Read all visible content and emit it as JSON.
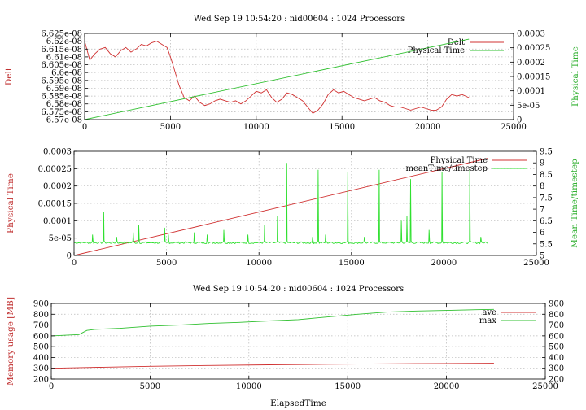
{
  "chart_data": [
    {
      "type": "line",
      "title": "Wed Sep 19 10:54:20 : nid00604 : 1024 Processors",
      "xlabel": "",
      "ylabel": "Delt",
      "y2label": "Physical Time",
      "xlim": [
        0,
        25000
      ],
      "ylim": [
        6.57e-08,
        6.625e-08
      ],
      "y2lim": [
        0,
        0.0003
      ],
      "xticks": [
        "0",
        "5000",
        "10000",
        "15000",
        "20000",
        "25000"
      ],
      "yticks": [
        "6.57e-08",
        "6.575e-08",
        "6.58e-08",
        "6.585e-08",
        "6.59e-08",
        "6.595e-08",
        "6.6e-08",
        "6.605e-08",
        "6.61e-08",
        "6.615e-08",
        "6.62e-08",
        "6.625e-08"
      ],
      "y2ticks": [
        "0",
        "5e-05",
        "0.0001",
        "0.00015",
        "0.0002",
        "0.00025",
        "0.0003"
      ],
      "grid": true,
      "legend": "top-right",
      "series": [
        {
          "name": "Delt",
          "color": "#d03030",
          "axis": "y",
          "x": [
            0,
            300,
            600,
            900,
            1200,
            1500,
            1800,
            2100,
            2400,
            2700,
            3000,
            3300,
            3600,
            3900,
            4200,
            4500,
            4800,
            5000,
            5200,
            5500,
            5800,
            6100,
            6400,
            6700,
            7000,
            7300,
            7600,
            7900,
            8200,
            8500,
            8800,
            9100,
            9400,
            9700,
            10000,
            10300,
            10600,
            10900,
            11200,
            11500,
            11800,
            12100,
            12400,
            12700,
            13000,
            13300,
            13600,
            13900,
            14200,
            14500,
            14800,
            15100,
            15400,
            15700,
            16000,
            16300,
            16600,
            16900,
            17200,
            17500,
            17800,
            18100,
            18400,
            18700,
            19000,
            19300,
            19600,
            19900,
            20200,
            20500,
            20800,
            21100,
            21400,
            21700,
            22000,
            22400
          ],
          "y": [
            6.62e-08,
            6.608e-08,
            6.612e-08,
            6.615e-08,
            6.616e-08,
            6.612e-08,
            6.61e-08,
            6.614e-08,
            6.616e-08,
            6.613e-08,
            6.615e-08,
            6.618e-08,
            6.617e-08,
            6.619e-08,
            6.62e-08,
            6.618e-08,
            6.616e-08,
            6.61e-08,
            6.603e-08,
            6.592e-08,
            6.584e-08,
            6.582e-08,
            6.585e-08,
            6.581e-08,
            6.579e-08,
            6.58e-08,
            6.582e-08,
            6.583e-08,
            6.582e-08,
            6.581e-08,
            6.582e-08,
            6.58e-08,
            6.582e-08,
            6.585e-08,
            6.588e-08,
            6.587e-08,
            6.589e-08,
            6.584e-08,
            6.581e-08,
            6.583e-08,
            6.587e-08,
            6.586e-08,
            6.584e-08,
            6.582e-08,
            6.578e-08,
            6.574e-08,
            6.576e-08,
            6.58e-08,
            6.586e-08,
            6.589e-08,
            6.587e-08,
            6.588e-08,
            6.586e-08,
            6.584e-08,
            6.583e-08,
            6.582e-08,
            6.583e-08,
            6.584e-08,
            6.582e-08,
            6.581e-08,
            6.579e-08,
            6.578e-08,
            6.578e-08,
            6.577e-08,
            6.576e-08,
            6.577e-08,
            6.578e-08,
            6.577e-08,
            6.576e-08,
            6.576e-08,
            6.578e-08,
            6.583e-08,
            6.586e-08,
            6.585e-08,
            6.586e-08,
            6.584e-08
          ]
        },
        {
          "name": "Physical Time",
          "color": "#30c030",
          "axis": "y2",
          "x": [
            0,
            22400
          ],
          "y": [
            0,
            0.00028
          ]
        }
      ]
    },
    {
      "type": "line",
      "title": "",
      "xlabel": "",
      "ylabel": "Physical Time",
      "y2label": "Mean Time/timestep",
      "xlim": [
        0,
        25000
      ],
      "ylim": [
        0,
        0.0003
      ],
      "y2lim": [
        5,
        9.5
      ],
      "xticks": [
        "0",
        "5000",
        "10000",
        "15000",
        "20000",
        "25000"
      ],
      "yticks": [
        "0",
        "5e-05",
        "0.0001",
        "0.00015",
        "0.0002",
        "0.00025",
        "0.0003"
      ],
      "y2ticks": [
        "5",
        "5.5",
        "6",
        "6.5",
        "7",
        "7.5",
        "8",
        "8.5",
        "9",
        "9.5"
      ],
      "grid": true,
      "legend": "top-right",
      "series": [
        {
          "name": "Physical Time",
          "color": "#d03030",
          "axis": "y",
          "x": [
            0,
            22400
          ],
          "y": [
            0,
            0.00028
          ]
        },
        {
          "name": "meanTime/timestep",
          "color": "#30e030",
          "axis": "y2",
          "baseline": 5.55,
          "x_start": 0,
          "x_end": 22400,
          "spikes": [
            {
              "x": 1000,
              "y": 5.9
            },
            {
              "x": 1600,
              "y": 6.9
            },
            {
              "x": 2300,
              "y": 5.8
            },
            {
              "x": 3200,
              "y": 6.0
            },
            {
              "x": 3500,
              "y": 6.3
            },
            {
              "x": 4900,
              "y": 6.2
            },
            {
              "x": 5100,
              "y": 5.9
            },
            {
              "x": 6500,
              "y": 6.0
            },
            {
              "x": 7200,
              "y": 5.9
            },
            {
              "x": 8100,
              "y": 6.1
            },
            {
              "x": 9400,
              "y": 5.9
            },
            {
              "x": 10300,
              "y": 6.3
            },
            {
              "x": 11000,
              "y": 6.7
            },
            {
              "x": 11500,
              "y": 9.0
            },
            {
              "x": 12900,
              "y": 5.8
            },
            {
              "x": 13200,
              "y": 8.7
            },
            {
              "x": 13600,
              "y": 5.9
            },
            {
              "x": 14800,
              "y": 8.6
            },
            {
              "x": 15700,
              "y": 5.8
            },
            {
              "x": 16500,
              "y": 8.7
            },
            {
              "x": 17700,
              "y": 6.5
            },
            {
              "x": 18000,
              "y": 6.7
            },
            {
              "x": 18200,
              "y": 8.3
            },
            {
              "x": 19200,
              "y": 6.1
            },
            {
              "x": 19900,
              "y": 8.6
            },
            {
              "x": 21400,
              "y": 8.7
            },
            {
              "x": 22000,
              "y": 5.8
            }
          ]
        }
      ]
    },
    {
      "type": "line",
      "title": "Wed Sep 19 10:54:20 : nid00604 : 1024 Processors",
      "xlabel": "ElapsedTime",
      "ylabel": "Memory usage [MB]",
      "y2label": "",
      "xlim": [
        0,
        25000
      ],
      "ylim": [
        200,
        900
      ],
      "y2lim": [
        200,
        900
      ],
      "xticks": [
        "0",
        "5000",
        "10000",
        "15000",
        "20000",
        "25000"
      ],
      "yticks": [
        "200",
        "300",
        "400",
        "500",
        "600",
        "700",
        "800",
        "900"
      ],
      "y2ticks": [
        "200",
        "300",
        "400",
        "500",
        "600",
        "700",
        "800",
        "900"
      ],
      "grid": true,
      "legend": "top-right",
      "series": [
        {
          "name": "ave",
          "color": "#d03030",
          "axis": "y",
          "x": [
            0,
            2000,
            5000,
            8000,
            11000,
            14000,
            17000,
            20000,
            22400
          ],
          "y": [
            300,
            308,
            318,
            326,
            332,
            337,
            341,
            344,
            346
          ]
        },
        {
          "name": "max",
          "color": "#30c030",
          "axis": "y",
          "x": [
            0,
            1400,
            1800,
            2200,
            3500,
            5000,
            6500,
            8000,
            9500,
            11000,
            12500,
            14000,
            15500,
            17000,
            18500,
            20000,
            21500,
            22400
          ],
          "y": [
            600,
            612,
            650,
            660,
            670,
            690,
            700,
            715,
            725,
            738,
            750,
            775,
            800,
            820,
            830,
            835,
            842,
            845
          ]
        }
      ]
    }
  ]
}
